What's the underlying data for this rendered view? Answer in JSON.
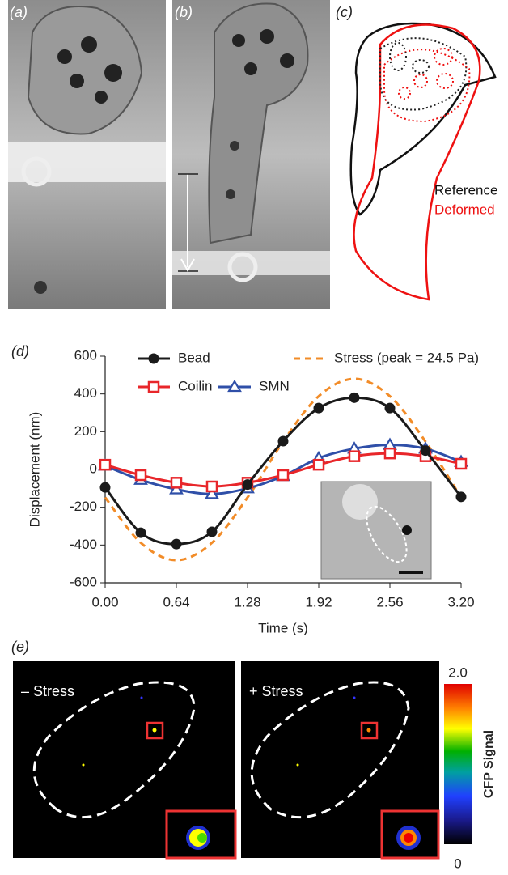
{
  "panels": [
    "(a)",
    "(b)",
    "(c)",
    "(d)",
    "(e)"
  ],
  "panel_c": {
    "legend": [
      "Reference",
      "Deformed"
    ]
  },
  "chart_data": {
    "type": "line",
    "x": [
      0,
      0.32,
      0.64,
      0.96,
      1.28,
      1.6,
      1.92,
      2.24,
      2.56,
      2.88,
      3.2
    ],
    "series": [
      {
        "name": "Bead",
        "color": "#1a1a1a",
        "marker": "circle",
        "dash": false,
        "values": [
          -95,
          -335,
          -395,
          -330,
          -80,
          150,
          325,
          380,
          325,
          100,
          -145
        ]
      },
      {
        "name": "Stress (peak = 24.5 Pa)",
        "color": "#f28c28",
        "marker": "none",
        "dash": true,
        "values": [
          -148,
          -388,
          -480,
          -388,
          -148,
          148,
          388,
          480,
          388,
          148,
          -148
        ]
      },
      {
        "name": "Coilin",
        "color": "#e8262a",
        "marker": "square",
        "dash": false,
        "values": [
          25,
          -30,
          -70,
          -90,
          -70,
          -30,
          25,
          70,
          85,
          70,
          30
        ]
      },
      {
        "name": "SMN",
        "color": "#2f4fa8",
        "marker": "triangle",
        "dash": false,
        "values": [
          20,
          -55,
          -105,
          -130,
          -100,
          -35,
          60,
          110,
          130,
          110,
          40
        ]
      }
    ],
    "xlabel": "Time (s)",
    "ylabel": "Displacement (nm)",
    "xlim": [
      0,
      3.2
    ],
    "ylim": [
      -600,
      600
    ],
    "xticks": [
      {
        "value": 0,
        "label": "0.00"
      },
      {
        "value": 0.64,
        "label": "0.64"
      },
      {
        "value": 1.28,
        "label": "1.28"
      },
      {
        "value": 1.92,
        "label": "1.92"
      },
      {
        "value": 2.56,
        "label": "2.56"
      },
      {
        "value": 3.2,
        "label": "3.20"
      }
    ],
    "yticks": [
      -600,
      -400,
      -200,
      0,
      200,
      400,
      600
    ],
    "legend": "top-left"
  },
  "panel_e": {
    "labels": [
      "– Stress",
      "+ Stress"
    ],
    "colorbar": {
      "label": "CFP Signal",
      "ticks": [
        {
          "value": 2,
          "label": "2.0"
        },
        0
      ],
      "lim": [
        0,
        2
      ]
    }
  }
}
